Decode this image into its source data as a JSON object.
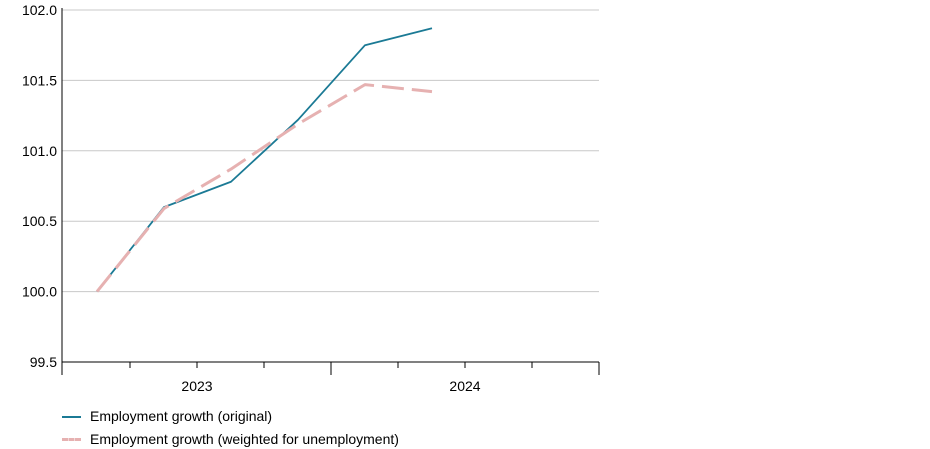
{
  "chart_data": {
    "type": "line",
    "title": "",
    "xlabel": "",
    "ylabel": "",
    "ylim": [
      99.5,
      102.0
    ],
    "yticks": [
      "99.5",
      "100.0",
      "100.5",
      "101.0",
      "101.5",
      "102.0"
    ],
    "year_labels": [
      "2023",
      "2024"
    ],
    "x": [
      "2022 Q4",
      "2023 Q1",
      "2023 Q2",
      "2023 Q3",
      "2023 Q4",
      "2024 Q1"
    ],
    "grid": "horizontal",
    "legend_position": "bottom-left",
    "series": [
      {
        "name": "Employment growth (original)",
        "color": "#1b7a95",
        "style": "solid",
        "values": [
          100.0,
          100.6,
          100.78,
          101.22,
          101.75,
          101.87
        ]
      },
      {
        "name": "Employment growth (weighted for unemployment)",
        "color": "#e6b1b1",
        "style": "dashed",
        "values": [
          100.0,
          100.59,
          100.87,
          101.19,
          101.47,
          101.42
        ]
      }
    ]
  }
}
